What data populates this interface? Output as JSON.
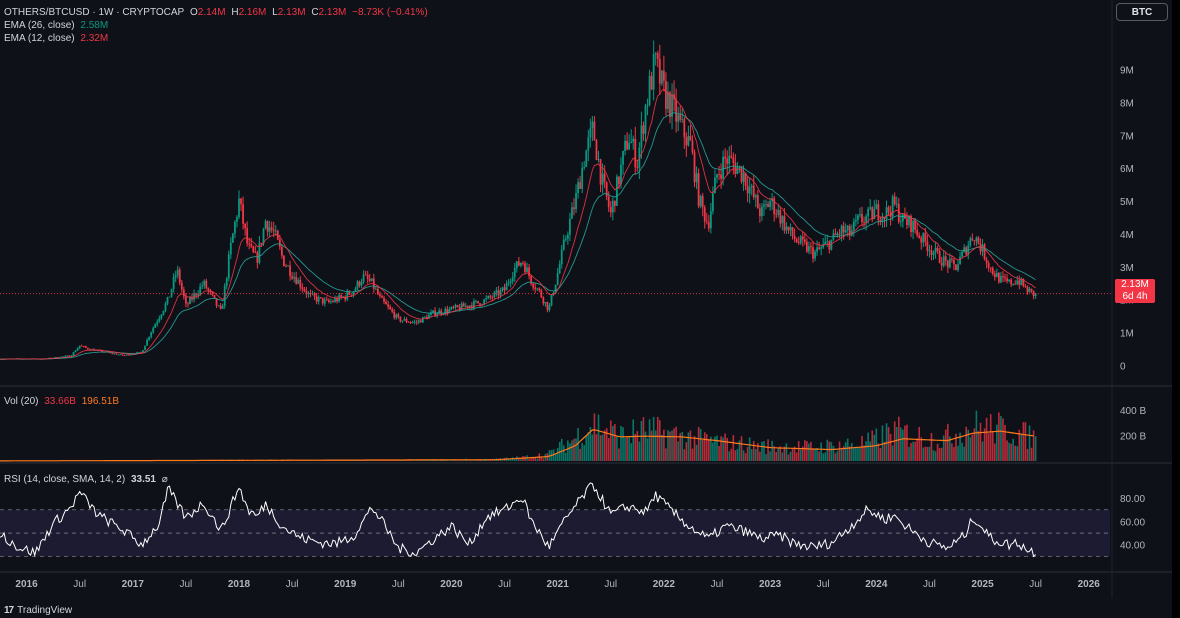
{
  "legend": {
    "symbol": "OTHERS/BTCUSD · 1W · CRYPTOCAP",
    "o_label": "O",
    "o_value": "2.14M",
    "h_label": "H",
    "h_value": "2.16M",
    "l_label": "L",
    "l_value": "2.13M",
    "c_label": "C",
    "c_value": "2.13M",
    "change": "−8.73K (−0.41%)",
    "ema26_label": "EMA (26, close)",
    "ema26_value": "2.58M",
    "ema12_label": "EMA (12, close)",
    "ema12_value": "2.32M",
    "vol_label": "Vol (20)",
    "vol_value": "33.66B",
    "vol_ma_value": "196.51B",
    "rsi_label": "RSI (14, close, SMA, 14, 2)",
    "rsi_value": "33.51"
  },
  "compare_button": "BTC",
  "price_tag": {
    "price": "2.13M",
    "countdown": "6d 4h"
  },
  "branding": {
    "logo_mark": "17",
    "name": "TradingView"
  },
  "colors": {
    "up": "#089981",
    "down": "#f23645",
    "ema26": "#26a69a",
    "ema12": "#f23645",
    "vol_ma": "#ff7a1a",
    "rsi": "#ffffff",
    "rsi_band": "#2a2545",
    "background": "#0f1119"
  },
  "chart_data": {
    "type": "line",
    "series_style": "candlestick",
    "x_ticks": [
      "2016",
      "Jul",
      "2017",
      "Jul",
      "2018",
      "Jul",
      "2019",
      "Jul",
      "2020",
      "Jul",
      "2021",
      "Jul",
      "2022",
      "Jul",
      "2023",
      "Jul",
      "2024",
      "Jul",
      "2025",
      "Jul",
      "2026"
    ],
    "price_axis": {
      "ticks": [
        "0",
        "1M",
        "2M",
        "3M",
        "4M",
        "5M",
        "6M",
        "7M",
        "8M",
        "9M"
      ],
      "ylim": [
        -0.2,
        9.9
      ],
      "unit": "M"
    },
    "close_anchors": [
      [
        "2015-10",
        0.2
      ],
      [
        "2016-03",
        0.2
      ],
      [
        "2016-06",
        0.3
      ],
      [
        "2016-07",
        0.6
      ],
      [
        "2016-08",
        0.5
      ],
      [
        "2016-12",
        0.3
      ],
      [
        "2017-02",
        0.4
      ],
      [
        "2017-03",
        1.0
      ],
      [
        "2017-05",
        2.0
      ],
      [
        "2017-06",
        2.9
      ],
      [
        "2017-07",
        1.8
      ],
      [
        "2017-09",
        2.5
      ],
      [
        "2017-11",
        1.6
      ],
      [
        "2017-12",
        3.5
      ],
      [
        "2018-01",
        5.0
      ],
      [
        "2018-02",
        3.6
      ],
      [
        "2018-03",
        3.2
      ],
      [
        "2018-04",
        4.4
      ],
      [
        "2018-05",
        4.0
      ],
      [
        "2018-06",
        3.2
      ],
      [
        "2018-07",
        2.8
      ],
      [
        "2018-09",
        2.1
      ],
      [
        "2018-11",
        1.9
      ],
      [
        "2019-01",
        2.1
      ],
      [
        "2019-02",
        2.3
      ],
      [
        "2019-03",
        2.7
      ],
      [
        "2019-04",
        2.5
      ],
      [
        "2019-05",
        2.0
      ],
      [
        "2019-06",
        1.7
      ],
      [
        "2019-07",
        1.4
      ],
      [
        "2019-09",
        1.3
      ],
      [
        "2019-11",
        1.6
      ],
      [
        "2020-01",
        1.7
      ],
      [
        "2020-04",
        1.9
      ],
      [
        "2020-05",
        2.0
      ],
      [
        "2020-07",
        2.3
      ],
      [
        "2020-08",
        2.9
      ],
      [
        "2020-09",
        3.2
      ],
      [
        "2020-10",
        2.6
      ],
      [
        "2020-11",
        2.2
      ],
      [
        "2020-12",
        1.7
      ],
      [
        "2021-01",
        2.8
      ],
      [
        "2021-02",
        4.0
      ],
      [
        "2021-03",
        5.0
      ],
      [
        "2021-04",
        6.3
      ],
      [
        "2021-05",
        7.2
      ],
      [
        "2021-06",
        5.6
      ],
      [
        "2021-07",
        4.6
      ],
      [
        "2021-08",
        5.8
      ],
      [
        "2021-09",
        7.0
      ],
      [
        "2021-10",
        6.2
      ],
      [
        "2021-11",
        8.0
      ],
      [
        "2021-12",
        9.2
      ],
      [
        "2022-01",
        8.3
      ],
      [
        "2022-02",
        7.8
      ],
      [
        "2022-03",
        7.2
      ],
      [
        "2022-04",
        6.7
      ],
      [
        "2022-05",
        5.0
      ],
      [
        "2022-06",
        4.3
      ],
      [
        "2022-07",
        5.8
      ],
      [
        "2022-08",
        6.3
      ],
      [
        "2022-09",
        6.1
      ],
      [
        "2022-10",
        5.8
      ],
      [
        "2022-11",
        5.2
      ],
      [
        "2022-12",
        4.6
      ],
      [
        "2023-01",
        5.0
      ],
      [
        "2023-02",
        4.6
      ],
      [
        "2023-03",
        4.1
      ],
      [
        "2023-04",
        3.8
      ],
      [
        "2023-05",
        3.6
      ],
      [
        "2023-06",
        3.4
      ],
      [
        "2023-07",
        3.6
      ],
      [
        "2023-08",
        3.8
      ],
      [
        "2023-09",
        4.1
      ],
      [
        "2023-10",
        4.0
      ],
      [
        "2023-11",
        4.4
      ],
      [
        "2023-12",
        4.5
      ],
      [
        "2024-01",
        4.7
      ],
      [
        "2024-02",
        4.6
      ],
      [
        "2024-03",
        4.9
      ],
      [
        "2024-04",
        4.4
      ],
      [
        "2024-05",
        4.3
      ],
      [
        "2024-06",
        3.9
      ],
      [
        "2024-07",
        3.6
      ],
      [
        "2024-08",
        3.3
      ],
      [
        "2024-09",
        3.1
      ],
      [
        "2024-10",
        3.0
      ],
      [
        "2024-11",
        3.5
      ],
      [
        "2024-12",
        4.0
      ],
      [
        "2025-01",
        3.5
      ],
      [
        "2025-02",
        2.9
      ],
      [
        "2025-03",
        2.6
      ],
      [
        "2025-04",
        2.5
      ],
      [
        "2025-05",
        2.6
      ],
      [
        "2025-06",
        2.3
      ],
      [
        "2025-07",
        2.13
      ]
    ],
    "volume_axis": {
      "ticks": [
        "200 B",
        "400 B"
      ],
      "ylim": [
        0,
        480
      ],
      "unit": "B"
    },
    "volume_anchors": [
      [
        "2015-10",
        2
      ],
      [
        "2017-06",
        5
      ],
      [
        "2018-01",
        10
      ],
      [
        "2019-06",
        8
      ],
      [
        "2020-06",
        15
      ],
      [
        "2020-09",
        30
      ],
      [
        "2020-12",
        60
      ],
      [
        "2021-03",
        200
      ],
      [
        "2021-05",
        330
      ],
      [
        "2021-08",
        220
      ],
      [
        "2021-11",
        270
      ],
      [
        "2022-02",
        230
      ],
      [
        "2022-06",
        180
      ],
      [
        "2022-12",
        130
      ],
      [
        "2023-06",
        120
      ],
      [
        "2023-12",
        160
      ],
      [
        "2024-03",
        260
      ],
      [
        "2024-08",
        180
      ],
      [
        "2024-12",
        300
      ],
      [
        "2025-03",
        280
      ],
      [
        "2025-07",
        200
      ]
    ],
    "volume_ma_anchors": [
      [
        "2015-10",
        1
      ],
      [
        "2018-01",
        5
      ],
      [
        "2020-06",
        10
      ],
      [
        "2020-12",
        35
      ],
      [
        "2021-03",
        120
      ],
      [
        "2021-05",
        250
      ],
      [
        "2021-08",
        190
      ],
      [
        "2021-11",
        195
      ],
      [
        "2022-03",
        190
      ],
      [
        "2022-07",
        160
      ],
      [
        "2023-01",
        105
      ],
      [
        "2023-08",
        90
      ],
      [
        "2024-01",
        120
      ],
      [
        "2024-04",
        175
      ],
      [
        "2024-09",
        160
      ],
      [
        "2024-12",
        220
      ],
      [
        "2025-03",
        235
      ],
      [
        "2025-07",
        195
      ]
    ],
    "rsi_axis": {
      "ticks": [
        "40.00",
        "60.00",
        "80.00"
      ],
      "ylim": [
        20,
        93
      ],
      "band": [
        30,
        70
      ]
    },
    "rsi_anchors": [
      [
        "2015-10",
        50
      ],
      [
        "2015-12",
        38
      ],
      [
        "2016-02",
        33
      ],
      [
        "2016-04",
        58
      ],
      [
        "2016-06",
        72
      ],
      [
        "2016-07",
        85
      ],
      [
        "2016-09",
        66
      ],
      [
        "2016-12",
        52
      ],
      [
        "2017-02",
        40
      ],
      [
        "2017-04",
        58
      ],
      [
        "2017-05",
        88
      ],
      [
        "2017-07",
        63
      ],
      [
        "2017-09",
        76
      ],
      [
        "2017-11",
        52
      ],
      [
        "2018-01",
        90
      ],
      [
        "2018-02",
        70
      ],
      [
        "2018-03",
        64
      ],
      [
        "2018-04",
        75
      ],
      [
        "2018-06",
        55
      ],
      [
        "2018-08",
        46
      ],
      [
        "2018-10",
        42
      ],
      [
        "2018-12",
        41
      ],
      [
        "2019-02",
        48
      ],
      [
        "2019-04",
        72
      ],
      [
        "2019-05",
        62
      ],
      [
        "2019-07",
        37
      ],
      [
        "2019-09",
        33
      ],
      [
        "2019-11",
        45
      ],
      [
        "2020-01",
        56
      ],
      [
        "2020-03",
        40
      ],
      [
        "2020-05",
        64
      ],
      [
        "2020-07",
        70
      ],
      [
        "2020-09",
        81
      ],
      [
        "2020-10",
        61
      ],
      [
        "2020-12",
        38
      ],
      [
        "2021-02",
        63
      ],
      [
        "2021-04",
        83
      ],
      [
        "2021-05",
        92
      ],
      [
        "2021-07",
        66
      ],
      [
        "2021-09",
        73
      ],
      [
        "2021-11",
        68
      ],
      [
        "2021-12",
        83
      ],
      [
        "2022-02",
        68
      ],
      [
        "2022-04",
        55
      ],
      [
        "2022-06",
        45
      ],
      [
        "2022-08",
        56
      ],
      [
        "2022-10",
        52
      ],
      [
        "2022-12",
        45
      ],
      [
        "2023-02",
        48
      ],
      [
        "2023-04",
        40
      ],
      [
        "2023-06",
        38
      ],
      [
        "2023-08",
        42
      ],
      [
        "2023-10",
        55
      ],
      [
        "2023-12",
        70
      ],
      [
        "2024-02",
        62
      ],
      [
        "2024-03",
        65
      ],
      [
        "2024-05",
        52
      ],
      [
        "2024-07",
        42
      ],
      [
        "2024-09",
        37
      ],
      [
        "2024-11",
        48
      ],
      [
        "2024-12",
        64
      ],
      [
        "2025-02",
        45
      ],
      [
        "2025-04",
        40
      ],
      [
        "2025-05",
        42
      ],
      [
        "2025-06",
        36
      ],
      [
        "2025-07",
        33.51
      ]
    ]
  }
}
